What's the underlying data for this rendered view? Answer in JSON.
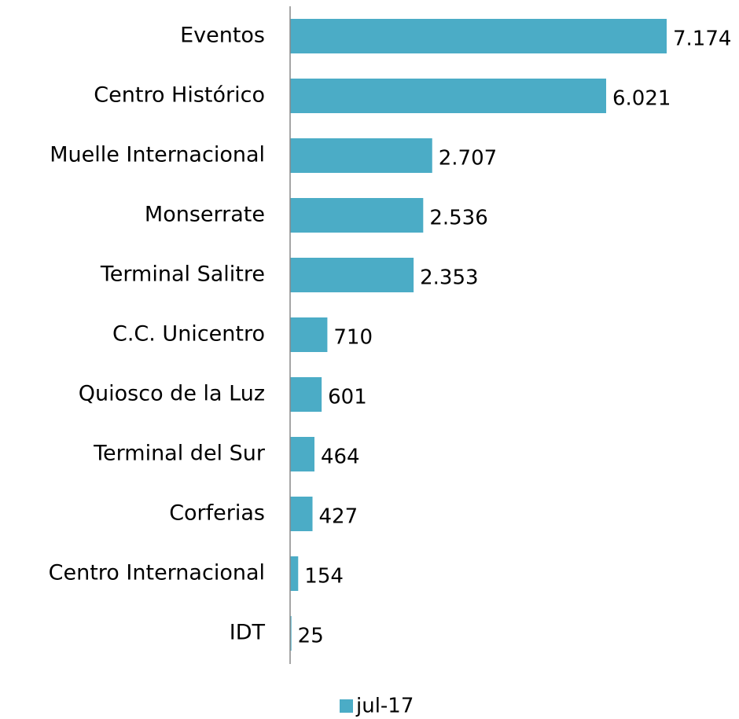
{
  "chart_data": {
    "type": "hbar",
    "categories": [
      "Eventos",
      "Centro Histórico",
      "Muelle Internacional",
      "Monserrate",
      "Terminal Salitre",
      "C.C. Unicentro",
      "Quiosco de la Luz",
      "Terminal del Sur",
      "Corferias",
      "Centro Internacional",
      "IDT"
    ],
    "series": [
      {
        "name": "jul-17",
        "color": "#4bacc6",
        "values": [
          7174,
          6021,
          2707,
          2536,
          2353,
          710,
          601,
          464,
          427,
          154,
          25
        ],
        "value_labels": [
          "7.174",
          "6.021",
          "2.707",
          "2.536",
          "2.353",
          "710",
          "601",
          "464",
          "427",
          "154",
          "25"
        ]
      }
    ],
    "legend": "bottom"
  }
}
